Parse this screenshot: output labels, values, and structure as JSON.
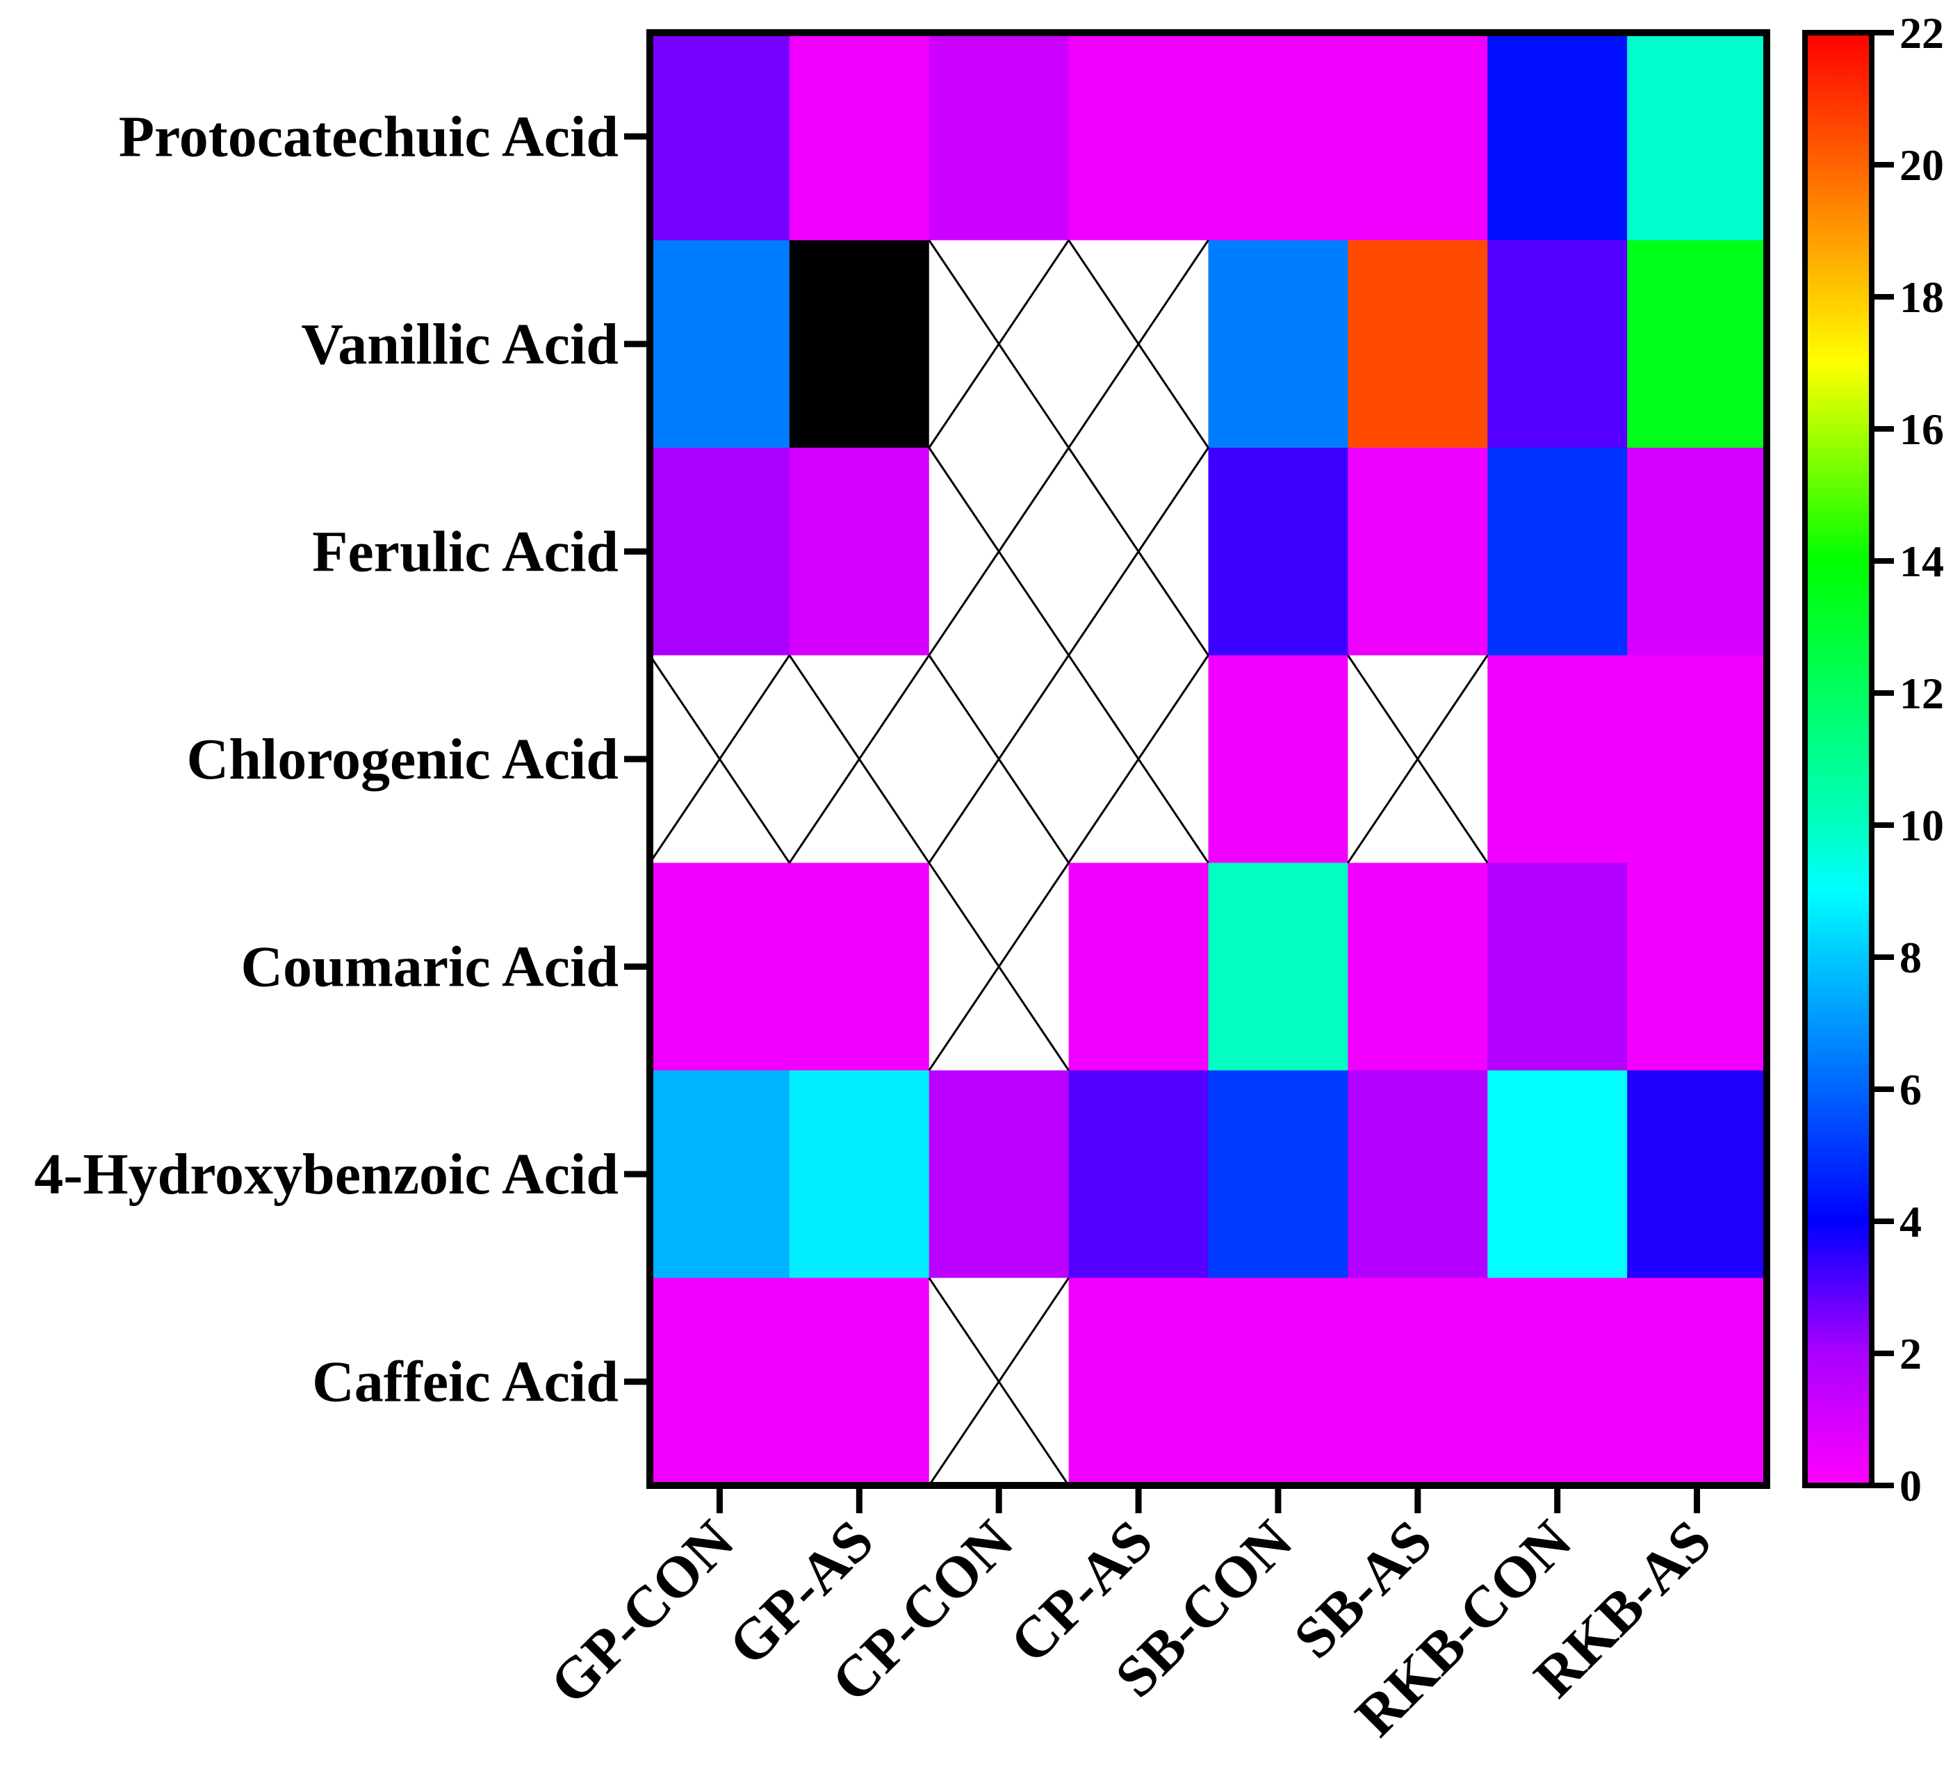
{
  "chart_data": {
    "type": "heatmap",
    "title": "",
    "xlabel": "",
    "ylabel": "",
    "rows": [
      "Protocatechuic Acid",
      "Vanillic Acid",
      "Ferulic Acid",
      "Chlorogenic Acid",
      "Coumaric Acid",
      "4-Hydroxybenzoic Acid",
      "Caffeic Acid"
    ],
    "columns": [
      "GP-CON",
      "GP-AS",
      "CP-CON",
      "CP-AS",
      "SB-CON",
      "SB-AS",
      "RKB-CON",
      "RKB-AS"
    ],
    "values": [
      [
        2.6,
        0.3,
        1.2,
        0.3,
        0.3,
        0.3,
        4.3,
        9.8
      ],
      [
        6.5,
        ">22",
        null,
        null,
        6.5,
        20.5,
        3.0,
        13.5
      ],
      [
        2.0,
        1.0,
        null,
        null,
        3.3,
        0.4,
        5.0,
        1.0
      ],
      [
        null,
        null,
        null,
        null,
        0.3,
        null,
        0.3,
        0.3
      ],
      [
        0.3,
        0.3,
        null,
        0.3,
        10.0,
        0.3,
        1.8,
        0.3
      ],
      [
        7.6,
        8.7,
        1.6,
        3.0,
        5.2,
        1.8,
        9.0,
        3.6
      ],
      [
        0.3,
        0.3,
        null,
        0.3,
        0.3,
        0.3,
        0.3,
        0.3
      ]
    ],
    "missing_marker": "X (no data)",
    "colorbar": {
      "min": 0,
      "max": 22,
      "ticks": [
        0,
        2,
        4,
        6,
        8,
        10,
        12,
        14,
        16,
        18,
        20,
        22
      ],
      "colors": {
        "0": "#ff00ff",
        "2": "#aa00ff",
        "4": "#0000ff",
        "6": "#0064ff",
        "8": "#00c8ff",
        "9": "#00ffff",
        "10": "#00ffc0",
        "14": "#00ff00",
        "17": "#ffff00",
        "20": "#ff6400",
        "22": "#ff0000"
      },
      "above_max_color": "#000000"
    }
  }
}
